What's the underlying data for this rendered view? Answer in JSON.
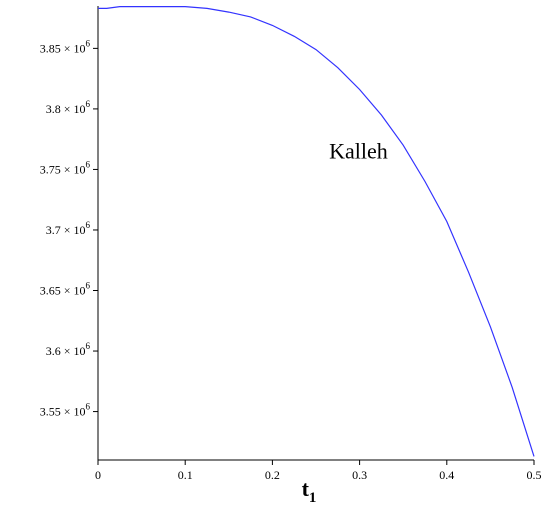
{
  "chart_data": {
    "type": "line",
    "xlabel": "t",
    "xlabel_subscript": "1",
    "ylabel": "",
    "xlim": [
      0,
      0.5
    ],
    "ylim": [
      3510000,
      3885000
    ],
    "x_ticks": [
      0,
      0.1,
      0.2,
      0.3,
      0.4,
      0.5
    ],
    "x_tick_labels": [
      "0",
      "0.1",
      "0.2",
      "0.3",
      "0.4",
      "0.5"
    ],
    "y_ticks": [
      3550000,
      3600000,
      3650000,
      3700000,
      3750000,
      3800000,
      3850000
    ],
    "y_tick_labels": [
      {
        "mantissa": "3.55",
        "exp": "6"
      },
      {
        "mantissa": "3.6",
        "exp": "6"
      },
      {
        "mantissa": "3.65",
        "exp": "6"
      },
      {
        "mantissa": "3.7",
        "exp": "6"
      },
      {
        "mantissa": "3.75",
        "exp": "6"
      },
      {
        "mantissa": "3.8",
        "exp": "6"
      },
      {
        "mantissa": "3.85",
        "exp": "6"
      }
    ],
    "grid": false,
    "annotations": [
      {
        "text": "Kalleh",
        "x": 0.265,
        "y": 3759000
      }
    ],
    "series": [
      {
        "color": "#3333ff",
        "x": [
          0,
          0.01,
          0.025,
          0.05,
          0.075,
          0.1,
          0.125,
          0.15,
          0.175,
          0.2,
          0.225,
          0.25,
          0.275,
          0.3,
          0.325,
          0.35,
          0.375,
          0.4,
          0.425,
          0.45,
          0.475,
          0.5
        ],
        "y": [
          3883000,
          3883000,
          3884500,
          3884500,
          3884500,
          3884500,
          3883000,
          3880000,
          3876000,
          3869000,
          3860000,
          3849000,
          3834000,
          3816000,
          3795000,
          3770000,
          3740000,
          3707000,
          3665000,
          3620000,
          3570000,
          3513000
        ]
      }
    ]
  }
}
